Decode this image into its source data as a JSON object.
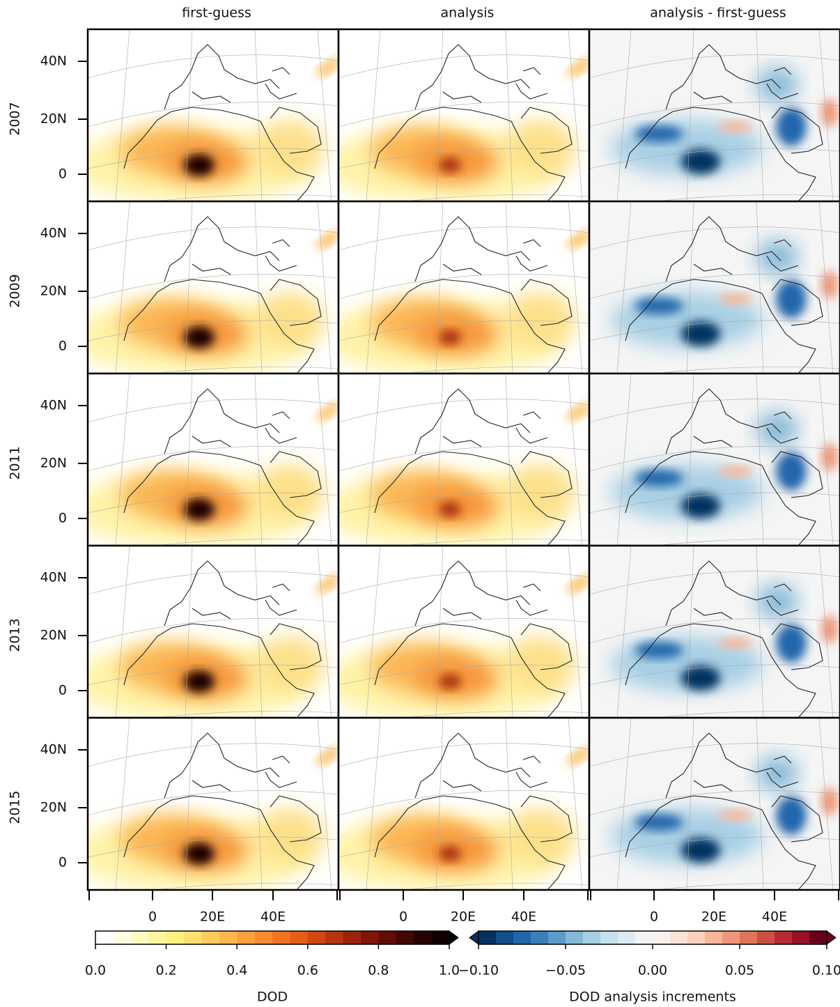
{
  "column_titles": [
    "first-guess",
    "analysis",
    "analysis - first-guess"
  ],
  "row_labels": [
    "2007",
    "2009",
    "2011",
    "2013",
    "2015"
  ],
  "lat_ticks": [
    "40N",
    "20N",
    "0"
  ],
  "lon_ticks": [
    "0",
    "20E",
    "40E"
  ],
  "colorbars": [
    {
      "label": "DOD",
      "lim": [
        0,
        1
      ],
      "ticks": [
        {
          "value": 0,
          "label": "0.0"
        },
        {
          "value": 0.2,
          "label": "0.2"
        },
        {
          "value": 0.4,
          "label": "0.4"
        },
        {
          "value": 0.6,
          "label": "0.6"
        },
        {
          "value": 0.8,
          "label": "0.8"
        },
        {
          "value": 1,
          "label": "1.0"
        }
      ],
      "colors": [
        "#ffffff",
        "#fffde0",
        "#fffac0",
        "#fff5a0",
        "#fff080",
        "#ffe070",
        "#fdcc5c",
        "#fdb74a",
        "#fca03c",
        "#f98a2e",
        "#f27322",
        "#e65d18",
        "#d24712",
        "#b8340e",
        "#9c230b",
        "#7e1708",
        "#600e05",
        "#420803",
        "#260302",
        "#100101"
      ]
    },
    {
      "label": "DOD analysis increments",
      "lim": [
        -0.1,
        0.1
      ],
      "ticks": [
        {
          "value": -0.1,
          "label": "−0.10"
        },
        {
          "value": -0.05,
          "label": "−0.05"
        },
        {
          "value": 0,
          "label": "0.00"
        },
        {
          "value": 0.05,
          "label": "0.05"
        },
        {
          "value": 0.1,
          "label": "0.10"
        }
      ],
      "colors": [
        "#053061",
        "#134c88",
        "#2166ac",
        "#3a7fb9",
        "#5a9bc9",
        "#85b9d8",
        "#a7cfe4",
        "#c6e0ee",
        "#dcebf3",
        "#f0f4f7",
        "#f7f0ed",
        "#fbe2d6",
        "#fcd0bc",
        "#f7b59a",
        "#ee9677",
        "#e07659",
        "#cc5042",
        "#b82a32",
        "#9a1229",
        "#67001f"
      ]
    }
  ]
}
